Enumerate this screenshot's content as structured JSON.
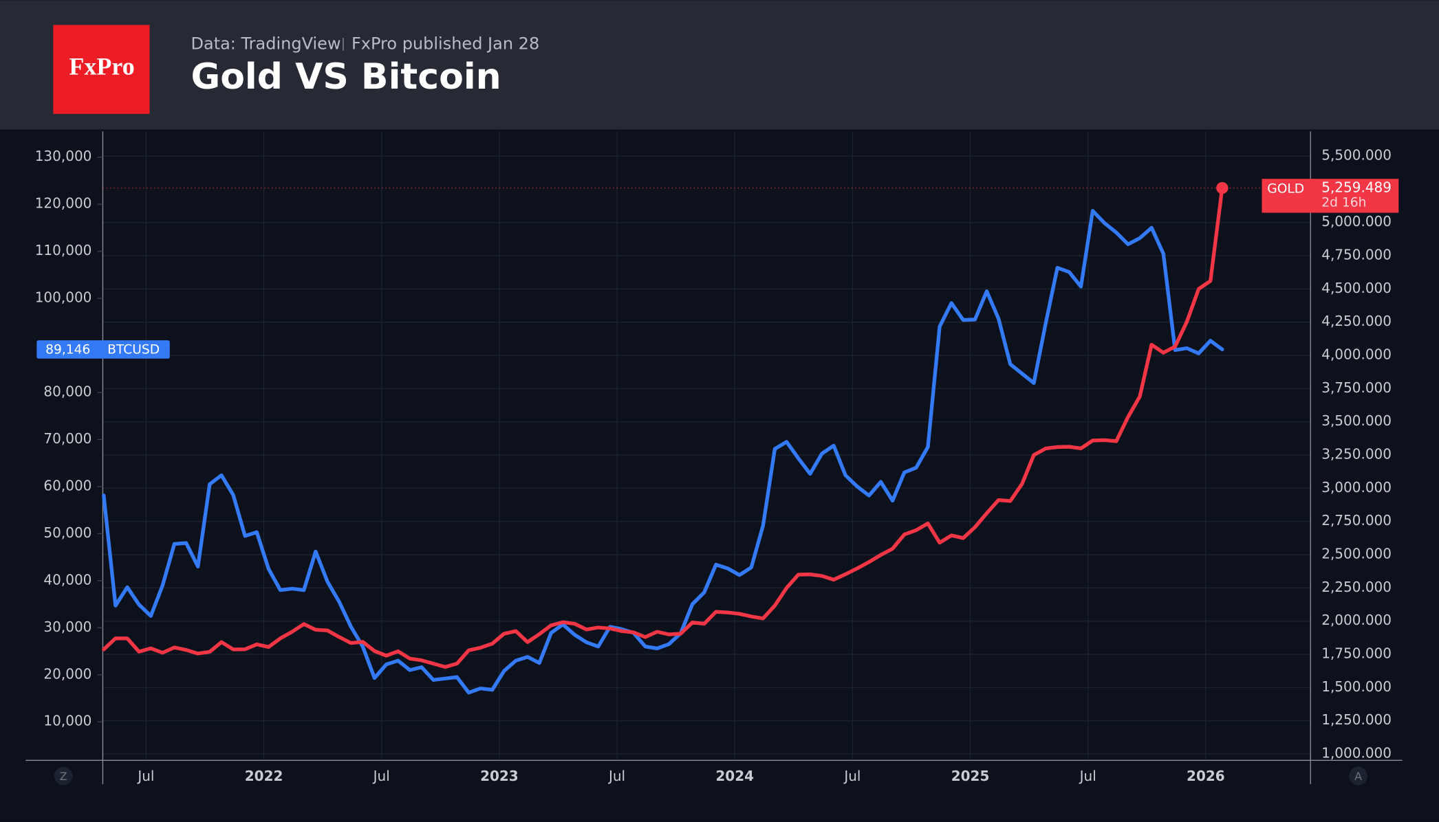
{
  "header": {
    "logo": "FxPro",
    "source": "Data: TradingView",
    "publisher": "FxPro published Jan 28"
  },
  "toolbar": {
    "left": "Z",
    "right": "A"
  },
  "chart_data": {
    "type": "line",
    "title": "Gold VS Bitcoin",
    "x": [
      2021.32,
      2021.37,
      2021.42,
      2021.47,
      2021.52,
      2021.57,
      2021.62,
      2021.67,
      2021.72,
      2021.77,
      2021.82,
      2021.87,
      2021.92,
      2021.97,
      2022.02,
      2022.07,
      2022.12,
      2022.17,
      2022.22,
      2022.27,
      2022.32,
      2022.37,
      2022.42,
      2022.47,
      2022.52,
      2022.57,
      2022.62,
      2022.67,
      2022.72,
      2022.77,
      2022.82,
      2022.87,
      2022.92,
      2022.97,
      2023.02,
      2023.07,
      2023.12,
      2023.17,
      2023.22,
      2023.27,
      2023.32,
      2023.37,
      2023.42,
      2023.47,
      2023.52,
      2023.57,
      2023.62,
      2023.67,
      2023.72,
      2023.77,
      2023.82,
      2023.87,
      2023.92,
      2023.97,
      2024.02,
      2024.07,
      2024.12,
      2024.17,
      2024.22,
      2024.27,
      2024.32,
      2024.37,
      2024.42,
      2024.47,
      2024.52,
      2024.57,
      2024.62,
      2024.67,
      2024.72,
      2024.77,
      2024.82,
      2024.87,
      2024.92,
      2024.97,
      2025.02,
      2025.07,
      2025.12,
      2025.17,
      2025.22,
      2025.27,
      2025.32,
      2025.37,
      2025.42,
      2025.47,
      2025.52,
      2025.57,
      2025.62,
      2025.67,
      2025.72,
      2025.77,
      2025.82,
      2025.87,
      2025.92,
      2025.97,
      2026.02,
      2026.07
    ],
    "xlim": [
      2021.316,
      2026.445
    ],
    "xticks": [
      {
        "value": 2021.5,
        "label": "Jul"
      },
      2022,
      {
        "value": 2022.5,
        "label": "Jul"
      },
      2023,
      {
        "value": 2023.5,
        "label": "Jul"
      },
      2024,
      {
        "value": 2024.5,
        "label": "Jul"
      },
      2025,
      {
        "value": 2025.5,
        "label": "Jul"
      },
      2026
    ],
    "ylim": [
      2000,
      135500
    ],
    "yticks": [
      {
        "value": 130000,
        "label": "130,000"
      },
      {
        "value": 120000,
        "label": "120,000"
      },
      {
        "value": 110000,
        "label": "110,000"
      },
      {
        "value": 100000,
        "label": "100,000"
      },
      {
        "value": 80000,
        "label": "80,000"
      },
      {
        "value": 70000,
        "label": "70,000"
      },
      {
        "value": 60000,
        "label": "60,000"
      },
      {
        "value": 50000,
        "label": "50,000"
      },
      {
        "value": 40000,
        "label": "40,000"
      },
      {
        "value": 30000,
        "label": "30,000"
      },
      {
        "value": 20000,
        "label": "20,000"
      },
      {
        "value": 10000,
        "label": "10,000"
      }
    ],
    "y2lim": [
      959,
      5686
    ],
    "y2ticks": [
      {
        "value": 5500,
        "label": "5,500.000"
      },
      {
        "value": 5000,
        "label": "5,000.000"
      },
      {
        "value": 4750,
        "label": "4,750.000"
      },
      {
        "value": 4500,
        "label": "4,500.000"
      },
      {
        "value": 4250,
        "label": "4,250.000"
      },
      {
        "value": 4000,
        "label": "4,000.000"
      },
      {
        "value": 3750,
        "label": "3,750.000"
      },
      {
        "value": 3500,
        "label": "3,500.000"
      },
      {
        "value": 3250,
        "label": "3,250.000"
      },
      {
        "value": 3000,
        "label": "3,000.000"
      },
      {
        "value": 2750,
        "label": "2,750.000"
      },
      {
        "value": 2500,
        "label": "2,500.000"
      },
      {
        "value": 2250,
        "label": "2,250.000"
      },
      {
        "value": 2000,
        "label": "2,000.000"
      },
      {
        "value": 1750,
        "label": "1,750.000"
      },
      {
        "value": 1500,
        "label": "1,500.000"
      },
      {
        "value": 1250,
        "label": "1,250.000"
      },
      {
        "value": 1000,
        "label": "1,000.000"
      }
    ],
    "grid": true,
    "series": [
      {
        "name": "BTCUSD",
        "color": "#3479f5",
        "axis": "y",
        "values": [
          58100,
          34700,
          38600,
          34900,
          32500,
          39000,
          47800,
          48000,
          43000,
          60500,
          62400,
          58200,
          49500,
          50300,
          42500,
          38000,
          38300,
          38000,
          46200,
          39800,
          35500,
          30200,
          26000,
          19300,
          22200,
          23000,
          21000,
          21600,
          18900,
          19200,
          19500,
          16200,
          17100,
          16800,
          20800,
          23000,
          23800,
          22500,
          28900,
          30700,
          28500,
          26900,
          26000,
          30200,
          29700,
          28900,
          26000,
          25600,
          26500,
          28800,
          35000,
          37500,
          43400,
          42600,
          41200,
          42800,
          51700,
          68000,
          69500,
          66000,
          62700,
          67000,
          68700,
          62400,
          60000,
          58100,
          61000,
          57000,
          63000,
          64000,
          68400,
          94000,
          99000,
          95400,
          95500,
          101500,
          95700,
          86000,
          84000,
          82000,
          94600,
          106500,
          105600,
          102500,
          118600,
          116000,
          114000,
          111500,
          112800,
          115000,
          109500,
          89000,
          89400,
          88300,
          91000,
          89146
        ],
        "value_labels": [
          null,
          null,
          null,
          null,
          null,
          null,
          null,
          null,
          null,
          null,
          null,
          null,
          null,
          null,
          null,
          null,
          null,
          null,
          null,
          null,
          null,
          null,
          null,
          null,
          null,
          null,
          null,
          null,
          null,
          null,
          null,
          null,
          null,
          null,
          null,
          null,
          null,
          null,
          null,
          null,
          null,
          null,
          null,
          null,
          null,
          null,
          null,
          null,
          null,
          null,
          null,
          null,
          null,
          null,
          null,
          null,
          null,
          null,
          null,
          null,
          null,
          null,
          null,
          null,
          null,
          null,
          null,
          null,
          null,
          null,
          null,
          null,
          null,
          null,
          null,
          null,
          null,
          null,
          null,
          null,
          null,
          null,
          null,
          null,
          null,
          null,
          null,
          null,
          null,
          null,
          null,
          null,
          null,
          null,
          null,
          "89,146"
        ]
      },
      {
        "name": "GOLD",
        "color": "#f23645",
        "axis": "y2",
        "countdown": "2d 16h",
        "values": [
          1787,
          1870,
          1870,
          1770,
          1795,
          1762,
          1802,
          1783,
          1756,
          1769,
          1842,
          1787,
          1788,
          1825,
          1805,
          1870,
          1920,
          1978,
          1935,
          1930,
          1880,
          1835,
          1844,
          1775,
          1740,
          1773,
          1718,
          1705,
          1680,
          1655,
          1680,
          1780,
          1800,
          1830,
          1905,
          1925,
          1842,
          1902,
          1968,
          1992,
          1980,
          1937,
          1952,
          1945,
          1925,
          1915,
          1880,
          1920,
          1900,
          1905,
          1990,
          1980,
          2070,
          2065,
          2055,
          2035,
          2020,
          2117,
          2250,
          2350,
          2352,
          2340,
          2312,
          2353,
          2397,
          2445,
          2498,
          2545,
          2652,
          2684,
          2735,
          2590,
          2645,
          2625,
          2707,
          2812,
          2911,
          2904,
          3033,
          3250,
          3299,
          3310,
          3312,
          3300,
          3359,
          3362,
          3354,
          3536,
          3690,
          4080,
          4020,
          4066,
          4254,
          4500,
          4560,
          5259.489
        ],
        "value_labels": [
          null,
          null,
          null,
          null,
          null,
          null,
          null,
          null,
          null,
          null,
          null,
          null,
          null,
          null,
          null,
          null,
          null,
          null,
          null,
          null,
          null,
          null,
          null,
          null,
          null,
          null,
          null,
          null,
          null,
          null,
          null,
          null,
          null,
          null,
          null,
          null,
          null,
          null,
          null,
          null,
          null,
          null,
          null,
          null,
          null,
          null,
          null,
          null,
          null,
          null,
          null,
          null,
          null,
          null,
          null,
          null,
          null,
          null,
          null,
          null,
          null,
          null,
          null,
          null,
          null,
          null,
          null,
          null,
          null,
          null,
          null,
          null,
          null,
          null,
          null,
          null,
          null,
          null,
          null,
          null,
          null,
          null,
          null,
          null,
          null,
          null,
          null,
          null,
          null,
          null,
          null,
          null,
          null,
          null,
          null,
          "5,259.489"
        ]
      }
    ]
  }
}
